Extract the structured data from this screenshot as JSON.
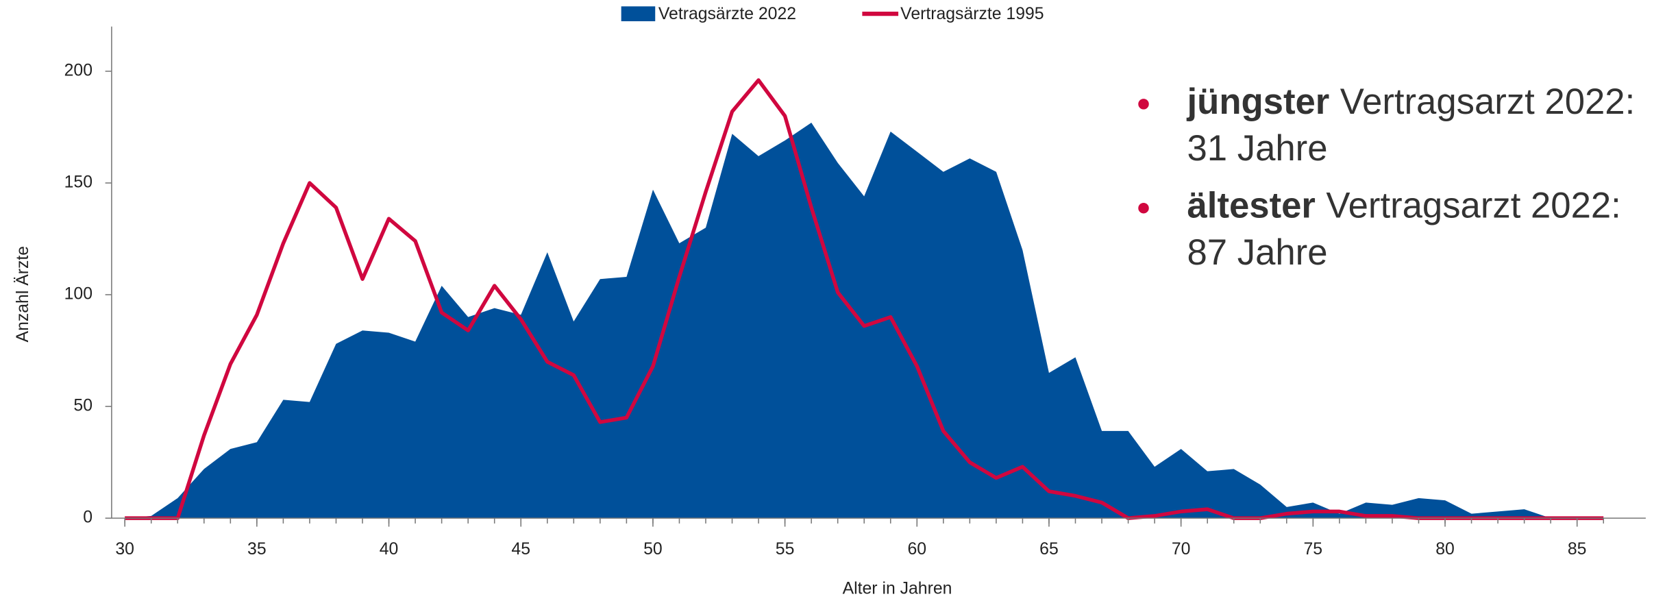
{
  "chart_data": {
    "type": "area_line",
    "x_label": "Alter in Jahren",
    "y_label": "Anzahl Ärzte",
    "x": [
      30,
      31,
      32,
      33,
      34,
      35,
      36,
      37,
      38,
      39,
      40,
      41,
      42,
      43,
      44,
      45,
      46,
      47,
      48,
      49,
      50,
      51,
      52,
      53,
      54,
      55,
      56,
      57,
      58,
      59,
      60,
      61,
      62,
      63,
      64,
      65,
      66,
      67,
      68,
      69,
      70,
      71,
      72,
      73,
      74,
      75,
      76,
      77,
      78,
      79,
      80,
      81,
      82,
      83,
      84,
      85,
      86
    ],
    "series": [
      {
        "name": "Vetragsärzte 2022",
        "kind": "area",
        "color": "#00509a",
        "values": [
          0,
          1,
          9,
          22,
          31,
          34,
          53,
          52,
          78,
          84,
          83,
          79,
          104,
          90,
          94,
          91,
          119,
          88,
          107,
          108,
          147,
          123,
          130,
          172,
          162,
          169,
          177,
          159,
          144,
          173,
          164,
          155,
          161,
          155,
          120,
          65,
          72,
          39,
          39,
          23,
          31,
          21,
          22,
          15,
          5,
          7,
          2,
          7,
          6,
          9,
          8,
          2,
          3,
          4,
          0,
          0,
          0
        ]
      },
      {
        "name": "Vertragsärzte 1995",
        "kind": "line",
        "color": "#d0073f",
        "values": [
          0,
          0,
          0,
          37,
          69,
          91,
          123,
          150,
          139,
          107,
          134,
          124,
          92,
          84,
          104,
          89,
          70,
          64,
          43,
          45,
          68,
          108,
          146,
          182,
          196,
          180,
          139,
          101,
          86,
          90,
          68,
          39,
          25,
          18,
          23,
          12,
          10,
          7,
          0,
          1,
          3,
          4,
          0,
          0,
          2,
          3,
          3,
          1,
          1,
          0,
          0,
          0,
          0,
          0,
          0,
          0,
          0
        ]
      }
    ],
    "xlim": [
      29.5,
      87.6
    ],
    "ylim": [
      0,
      220
    ],
    "xticks": [
      30,
      35,
      40,
      45,
      50,
      55,
      60,
      65,
      70,
      75,
      80,
      85
    ],
    "yticks": [
      0,
      50,
      100,
      150,
      200
    ],
    "annotations": [
      {
        "bold": "jüngster",
        "text": "Vertragsarzt 2022:",
        "line2": "31 Jahre"
      },
      {
        "bold": "ältester",
        "text": "Vertragsarzt 2022:",
        "line2": "87 Jahre"
      }
    ],
    "bullet_color": "#d0073f"
  }
}
